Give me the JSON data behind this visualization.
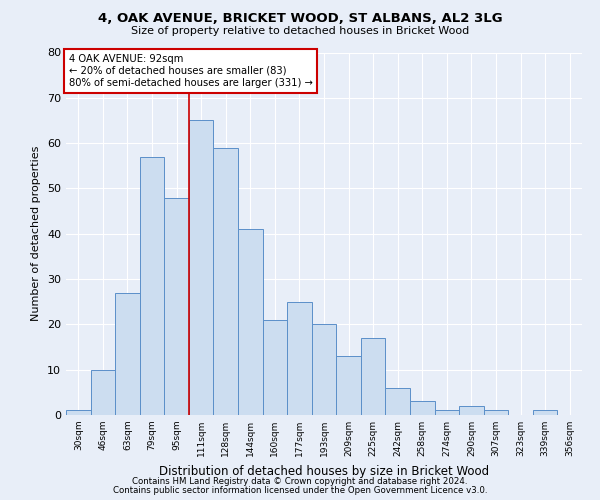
{
  "title": "4, OAK AVENUE, BRICKET WOOD, ST ALBANS, AL2 3LG",
  "subtitle": "Size of property relative to detached houses in Bricket Wood",
  "xlabel": "Distribution of detached houses by size in Bricket Wood",
  "ylabel": "Number of detached properties",
  "footnote1": "Contains HM Land Registry data © Crown copyright and database right 2024.",
  "footnote2": "Contains public sector information licensed under the Open Government Licence v3.0.",
  "bar_labels": [
    "30sqm",
    "46sqm",
    "63sqm",
    "79sqm",
    "95sqm",
    "111sqm",
    "128sqm",
    "144sqm",
    "160sqm",
    "177sqm",
    "193sqm",
    "209sqm",
    "225sqm",
    "242sqm",
    "258sqm",
    "274sqm",
    "290sqm",
    "307sqm",
    "323sqm",
    "339sqm",
    "356sqm"
  ],
  "bar_values": [
    1,
    10,
    27,
    57,
    48,
    65,
    59,
    41,
    21,
    25,
    20,
    13,
    17,
    6,
    3,
    1,
    2,
    1,
    0,
    1,
    0
  ],
  "bar_color": "#ccddf0",
  "bar_edge_color": "#5b8fc9",
  "bg_color": "#e8eef8",
  "grid_color": "#ffffff",
  "property_label": "4 OAK AVENUE: 92sqm",
  "annotation_line1": "← 20% of detached houses are smaller (83)",
  "annotation_line2": "80% of semi-detached houses are larger (331) →",
  "vline_x_index": 4.5,
  "annotation_box_color": "#ffffff",
  "annotation_box_edge": "#cc0000",
  "ylim": [
    0,
    80
  ],
  "yticks": [
    0,
    10,
    20,
    30,
    40,
    50,
    60,
    70,
    80
  ],
  "fig_bg": "#e8eef8"
}
